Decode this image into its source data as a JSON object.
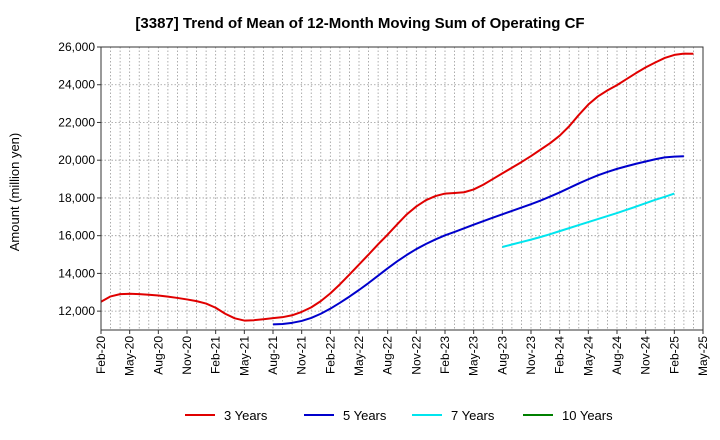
{
  "chart_data": {
    "type": "line",
    "title": "[3387]  Trend of Mean of 12-Month Moving Sum of Operating CF",
    "xlabel": "",
    "ylabel": "Amount (million yen)",
    "ylim": [
      11000,
      26000
    ],
    "yticks": [
      12000,
      14000,
      16000,
      18000,
      20000,
      22000,
      24000,
      26000
    ],
    "ytick_labels": [
      "12,000",
      "14,000",
      "16,000",
      "18,000",
      "20,000",
      "22,000",
      "24,000",
      "26,000"
    ],
    "xtick_labels": [
      "Feb-20",
      "May-20",
      "Aug-20",
      "Nov-20",
      "Feb-21",
      "May-21",
      "Aug-21",
      "Nov-21",
      "Feb-22",
      "May-22",
      "Aug-22",
      "Nov-22",
      "Feb-23",
      "May-23",
      "Aug-23",
      "Nov-23",
      "Feb-24",
      "May-24",
      "Aug-24",
      "Nov-24",
      "Feb-25",
      "May-25"
    ],
    "x_start": "Feb-20",
    "x_months_total": 63,
    "grid": true,
    "legend_position": "bottom",
    "series": [
      {
        "name": "3 Years",
        "color": "#e00000",
        "start_month_index": 0,
        "values": [
          12500,
          12780,
          12900,
          12920,
          12900,
          12870,
          12830,
          12770,
          12700,
          12620,
          12530,
          12400,
          12180,
          11860,
          11620,
          11500,
          11520,
          11570,
          11630,
          11680,
          11780,
          11960,
          12200,
          12530,
          12940,
          13420,
          13940,
          14470,
          15000,
          15540,
          16060,
          16600,
          17130,
          17550,
          17880,
          18100,
          18230,
          18260,
          18300,
          18450,
          18700,
          19000,
          19300,
          19600,
          19900,
          20220,
          20560,
          20900,
          21300,
          21800,
          22400,
          22950,
          23380,
          23700,
          23980,
          24300,
          24620,
          24920,
          25180,
          25420,
          25580,
          25650,
          25640
        ]
      },
      {
        "name": "5 Years",
        "color": "#0000cc",
        "start_month_index": 18,
        "values": [
          11300,
          11320,
          11380,
          11480,
          11640,
          11860,
          12130,
          12440,
          12770,
          13120,
          13490,
          13880,
          14270,
          14640,
          14980,
          15290,
          15560,
          15800,
          16020,
          16200,
          16390,
          16580,
          16770,
          16950,
          17130,
          17310,
          17490,
          17670,
          17860,
          18070,
          18290,
          18530,
          18770,
          18990,
          19200,
          19380,
          19540,
          19680,
          19810,
          19930,
          20050,
          20150,
          20190,
          20210
        ]
      },
      {
        "name": "7 Years",
        "color": "#00e5ee",
        "start_month_index": 42,
        "values": [
          15400,
          15530,
          15660,
          15790,
          15930,
          16080,
          16240,
          16400,
          16560,
          16720,
          16880,
          17040,
          17200,
          17370,
          17540,
          17720,
          17900,
          18060,
          18230
        ]
      },
      {
        "name": "10 Years",
        "color": "#008000",
        "start_month_index": 0,
        "values": []
      }
    ]
  }
}
